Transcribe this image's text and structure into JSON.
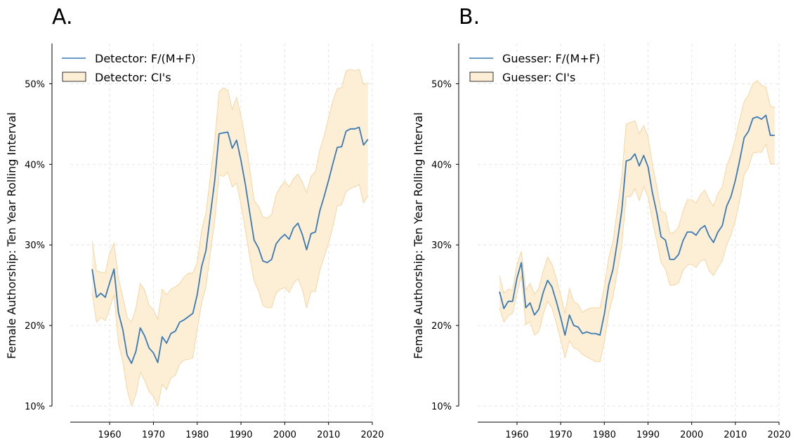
{
  "chart_data": [
    {
      "type": "line",
      "panel_label": "A.",
      "ylabel": "Female Authorship: Ten Year Rolling Interval",
      "xlabel": "",
      "xlim": [
        1951,
        2020
      ],
      "ylim": [
        0.08,
        0.55
      ],
      "x_ticks": [
        1960,
        1970,
        1980,
        1990,
        2000,
        2010,
        2020
      ],
      "y_ticks": [
        0.1,
        0.2,
        0.3,
        0.4,
        0.5
      ],
      "y_tick_labels": [
        "10%",
        "20%",
        "30%",
        "40%",
        "50%"
      ],
      "grid": true,
      "legend_position": "top-left",
      "legend": [
        "Detector: F/(M+F)",
        "Detector: CI's"
      ],
      "colors": {
        "line": "#3a7ab5",
        "band_fill": "#fdeed6",
        "band_edge": "#f6cf94"
      },
      "series": [
        {
          "name": "Detector: F/(M+F)",
          "x": [
            1956,
            1957,
            1958,
            1959,
            1960,
            1961,
            1962,
            1963,
            1964,
            1965,
            1966,
            1967,
            1968,
            1969,
            1970,
            1971,
            1972,
            1973,
            1974,
            1975,
            1976,
            1977,
            1978,
            1979,
            1980,
            1981,
            1982,
            1983,
            1984,
            1985,
            1986,
            1987,
            1988,
            1989,
            1990,
            1991,
            1992,
            1993,
            1994,
            1995,
            1996,
            1997,
            1998,
            1999,
            2000,
            2001,
            2002,
            2003,
            2004,
            2005,
            2006,
            2007,
            2008,
            2009,
            2010,
            2011,
            2012,
            2013,
            2014,
            2015,
            2016,
            2017,
            2018,
            2019
          ],
          "y": [
            0.27,
            0.235,
            0.24,
            0.235,
            0.253,
            0.27,
            0.216,
            0.195,
            0.163,
            0.153,
            0.168,
            0.197,
            0.187,
            0.172,
            0.166,
            0.154,
            0.186,
            0.178,
            0.19,
            0.193,
            0.204,
            0.207,
            0.211,
            0.215,
            0.238,
            0.273,
            0.293,
            0.337,
            0.38,
            0.438,
            0.439,
            0.44,
            0.42,
            0.43,
            0.405,
            0.375,
            0.34,
            0.306,
            0.296,
            0.28,
            0.278,
            0.282,
            0.301,
            0.308,
            0.313,
            0.307,
            0.321,
            0.327,
            0.313,
            0.294,
            0.314,
            0.316,
            0.342,
            0.36,
            0.38,
            0.401,
            0.421,
            0.422,
            0.441,
            0.444,
            0.444,
            0.446,
            0.424,
            0.431
          ]
        },
        {
          "name": "Detector: CI's",
          "x": [
            1956,
            1957,
            1958,
            1959,
            1960,
            1961,
            1962,
            1963,
            1964,
            1965,
            1966,
            1967,
            1968,
            1969,
            1970,
            1971,
            1972,
            1973,
            1974,
            1975,
            1976,
            1977,
            1978,
            1979,
            1980,
            1981,
            1982,
            1983,
            1984,
            1985,
            1986,
            1987,
            1988,
            1989,
            1990,
            1991,
            1992,
            1993,
            1994,
            1995,
            1996,
            1997,
            1998,
            1999,
            2000,
            2001,
            2002,
            2003,
            2004,
            2005,
            2006,
            2007,
            2008,
            2009,
            2010,
            2011,
            2012,
            2013,
            2014,
            2015,
            2016,
            2017,
            2018,
            2019
          ],
          "upper": [
            0.305,
            0.268,
            0.266,
            0.265,
            0.29,
            0.302,
            0.258,
            0.235,
            0.21,
            0.204,
            0.222,
            0.252,
            0.244,
            0.225,
            0.219,
            0.208,
            0.245,
            0.238,
            0.245,
            0.248,
            0.252,
            0.26,
            0.265,
            0.265,
            0.278,
            0.318,
            0.34,
            0.385,
            0.43,
            0.49,
            0.495,
            0.492,
            0.468,
            0.483,
            0.46,
            0.43,
            0.395,
            0.355,
            0.348,
            0.335,
            0.333,
            0.338,
            0.362,
            0.372,
            0.379,
            0.372,
            0.382,
            0.388,
            0.378,
            0.365,
            0.385,
            0.391,
            0.418,
            0.435,
            0.458,
            0.479,
            0.494,
            0.495,
            0.516,
            0.518,
            0.516,
            0.518,
            0.499,
            0.501
          ],
          "lower": [
            0.24,
            0.204,
            0.21,
            0.206,
            0.221,
            0.238,
            0.178,
            0.155,
            0.12,
            0.1,
            0.114,
            0.142,
            0.132,
            0.118,
            0.112,
            0.1,
            0.127,
            0.12,
            0.135,
            0.138,
            0.152,
            0.157,
            0.158,
            0.16,
            0.195,
            0.228,
            0.248,
            0.29,
            0.33,
            0.387,
            0.385,
            0.39,
            0.372,
            0.377,
            0.35,
            0.318,
            0.285,
            0.255,
            0.243,
            0.225,
            0.222,
            0.222,
            0.24,
            0.245,
            0.247,
            0.241,
            0.252,
            0.258,
            0.245,
            0.222,
            0.242,
            0.242,
            0.268,
            0.285,
            0.302,
            0.323,
            0.348,
            0.35,
            0.366,
            0.37,
            0.372,
            0.375,
            0.352,
            0.361
          ]
        }
      ]
    },
    {
      "type": "line",
      "panel_label": "B.",
      "ylabel": "Female Authorship: Ten Year Rolling Interval",
      "xlabel": "",
      "xlim": [
        1951,
        2020
      ],
      "ylim": [
        0.08,
        0.55
      ],
      "x_ticks": [
        1960,
        1970,
        1980,
        1990,
        2000,
        2010,
        2020
      ],
      "y_ticks": [
        0.1,
        0.2,
        0.3,
        0.4,
        0.5
      ],
      "y_tick_labels": [
        "10%",
        "20%",
        "30%",
        "40%",
        "50%"
      ],
      "grid": true,
      "legend_position": "top-left",
      "legend": [
        "Guesser: F/(M+F)",
        "Guesser: CI's"
      ],
      "colors": {
        "line": "#3a7ab5",
        "band_fill": "#fdeed6",
        "band_edge": "#f6cf94"
      },
      "series": [
        {
          "name": "Guesser: F/(M+F)",
          "x": [
            1956,
            1957,
            1958,
            1959,
            1960,
            1961,
            1962,
            1963,
            1964,
            1965,
            1966,
            1967,
            1968,
            1969,
            1970,
            1971,
            1972,
            1973,
            1974,
            1975,
            1976,
            1977,
            1978,
            1979,
            1980,
            1981,
            1982,
            1983,
            1984,
            1985,
            1986,
            1987,
            1988,
            1989,
            1990,
            1991,
            1992,
            1993,
            1994,
            1995,
            1996,
            1997,
            1998,
            1999,
            2000,
            2001,
            2002,
            2003,
            2004,
            2005,
            2006,
            2007,
            2008,
            2009,
            2010,
            2011,
            2012,
            2013,
            2014,
            2015,
            2016,
            2017,
            2018,
            2019
          ],
          "y": [
            0.242,
            0.221,
            0.23,
            0.23,
            0.259,
            0.278,
            0.222,
            0.228,
            0.213,
            0.22,
            0.241,
            0.256,
            0.248,
            0.23,
            0.21,
            0.188,
            0.213,
            0.2,
            0.198,
            0.19,
            0.192,
            0.19,
            0.19,
            0.188,
            0.214,
            0.25,
            0.27,
            0.305,
            0.343,
            0.404,
            0.406,
            0.413,
            0.398,
            0.411,
            0.397,
            0.365,
            0.34,
            0.31,
            0.306,
            0.282,
            0.282,
            0.288,
            0.305,
            0.316,
            0.316,
            0.312,
            0.32,
            0.324,
            0.311,
            0.303,
            0.316,
            0.324,
            0.348,
            0.36,
            0.38,
            0.405,
            0.433,
            0.441,
            0.457,
            0.459,
            0.456,
            0.461,
            0.436,
            0.436
          ]
        },
        {
          "name": "Guesser: CI's",
          "x": [
            1956,
            1957,
            1958,
            1959,
            1960,
            1961,
            1962,
            1963,
            1964,
            1965,
            1966,
            1967,
            1968,
            1969,
            1970,
            1971,
            1972,
            1973,
            1974,
            1975,
            1976,
            1977,
            1978,
            1979,
            1980,
            1981,
            1982,
            1983,
            1984,
            1985,
            1986,
            1987,
            1988,
            1989,
            1990,
            1991,
            1992,
            1993,
            1994,
            1995,
            1996,
            1997,
            1998,
            1999,
            2000,
            2001,
            2002,
            2003,
            2004,
            2005,
            2006,
            2007,
            2008,
            2009,
            2010,
            2011,
            2012,
            2013,
            2014,
            2015,
            2016,
            2017,
            2018,
            2019
          ],
          "upper": [
            0.262,
            0.24,
            0.245,
            0.244,
            0.276,
            0.292,
            0.244,
            0.252,
            0.239,
            0.246,
            0.268,
            0.285,
            0.276,
            0.259,
            0.238,
            0.215,
            0.246,
            0.23,
            0.226,
            0.216,
            0.22,
            0.222,
            0.222,
            0.222,
            0.248,
            0.284,
            0.305,
            0.345,
            0.385,
            0.45,
            0.452,
            0.454,
            0.438,
            0.448,
            0.434,
            0.4,
            0.373,
            0.342,
            0.34,
            0.314,
            0.316,
            0.322,
            0.342,
            0.356,
            0.356,
            0.352,
            0.362,
            0.368,
            0.356,
            0.348,
            0.364,
            0.372,
            0.398,
            0.412,
            0.432,
            0.456,
            0.478,
            0.486,
            0.5,
            0.504,
            0.498,
            0.496,
            0.472,
            0.471
          ],
          "lower": [
            0.222,
            0.204,
            0.212,
            0.215,
            0.24,
            0.262,
            0.201,
            0.205,
            0.188,
            0.192,
            0.214,
            0.23,
            0.222,
            0.203,
            0.182,
            0.16,
            0.181,
            0.172,
            0.17,
            0.164,
            0.161,
            0.158,
            0.155,
            0.155,
            0.18,
            0.215,
            0.236,
            0.268,
            0.3,
            0.36,
            0.36,
            0.37,
            0.355,
            0.372,
            0.36,
            0.33,
            0.305,
            0.278,
            0.27,
            0.25,
            0.25,
            0.253,
            0.268,
            0.275,
            0.276,
            0.272,
            0.28,
            0.282,
            0.268,
            0.262,
            0.272,
            0.28,
            0.3,
            0.312,
            0.33,
            0.355,
            0.387,
            0.396,
            0.414,
            0.415,
            0.415,
            0.425,
            0.401,
            0.4
          ]
        }
      ]
    }
  ]
}
